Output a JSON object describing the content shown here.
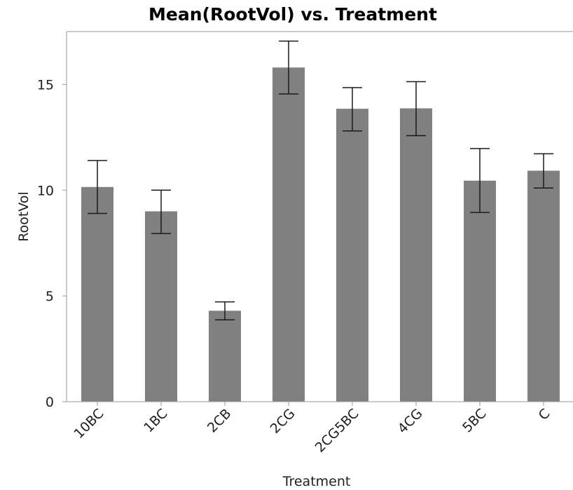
{
  "chart_data": {
    "type": "bar",
    "title": "Mean(RootVol) vs. Treatment",
    "xlabel": "Treatment",
    "ylabel": "RootVol",
    "categories": [
      "10BC",
      "1BC",
      "2CB",
      "2CG",
      "2CG5BC",
      "4CG",
      "5BC",
      "C"
    ],
    "values": [
      10.15,
      9.0,
      4.3,
      15.8,
      13.85,
      13.87,
      10.45,
      10.92
    ],
    "error_low": [
      8.9,
      7.95,
      3.87,
      14.55,
      12.8,
      12.58,
      8.95,
      10.1
    ],
    "error_high": [
      11.4,
      10.0,
      4.72,
      17.05,
      14.85,
      15.13,
      11.97,
      11.72
    ],
    "ylim": [
      0,
      17.5
    ],
    "yticks": [
      0,
      5,
      10,
      15
    ],
    "bar_color": "#808080",
    "grid": false,
    "legend": "none"
  }
}
